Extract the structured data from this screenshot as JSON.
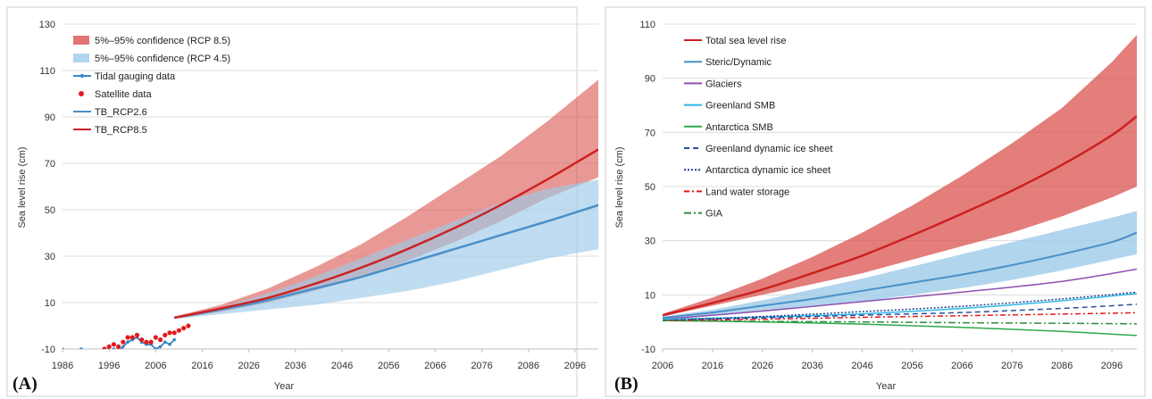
{
  "chart_data": [
    {
      "type": "line",
      "panel_label": "(A)",
      "xlabel": "Year",
      "ylabel": "Sea level rise (cm)",
      "xlim": [
        1986,
        2101
      ],
      "ylim": [
        -10,
        130
      ],
      "xticks": [
        "1986",
        "1996",
        "2006",
        "2016",
        "2026",
        "2036",
        "2046",
        "2056",
        "2066",
        "2076",
        "2086",
        "2096"
      ],
      "yticks": [
        "-10",
        "10",
        "30",
        "50",
        "70",
        "90",
        "110",
        "130"
      ],
      "grid": true,
      "legend_position": "top-left",
      "legend": [
        {
          "label": "5%–95% confidence (RCP 8.5)",
          "kind": "band",
          "color": "#d9534f"
        },
        {
          "label": "5%–95% confidence (RCP 4.5)",
          "kind": "band",
          "color": "#9ecae8"
        },
        {
          "label": "Tidal gauging data",
          "kind": "line-marker",
          "color": "#3a86c8"
        },
        {
          "label": "Satellite data",
          "kind": "marker",
          "color": "#e31a1c"
        },
        {
          "label": "TB_RCP2.6",
          "kind": "line",
          "color": "#4a90c8"
        },
        {
          "label": "TB_RCP8.5",
          "kind": "line",
          "color": "#cc2222"
        }
      ],
      "bands": [
        {
          "name": "5%–95% confidence (RCP 8.5)",
          "color": "#d9534f",
          "opacity": 0.6,
          "x": [
            2010,
            2020,
            2030,
            2040,
            2050,
            2060,
            2070,
            2080,
            2090,
            2101
          ],
          "upper": [
            4,
            9,
            16,
            25,
            35,
            47,
            60,
            73,
            88,
            106
          ],
          "lower": [
            3,
            6,
            10,
            15,
            21,
            28,
            36,
            45,
            55,
            64
          ]
        },
        {
          "name": "5%–95% confidence (RCP 4.5)",
          "color": "#9ecae8",
          "opacity": 0.65,
          "x": [
            2010,
            2020,
            2030,
            2040,
            2050,
            2060,
            2070,
            2080,
            2090,
            2101
          ],
          "upper": [
            4,
            8,
            14,
            21,
            29,
            37,
            45,
            53,
            59,
            63
          ],
          "lower": [
            3,
            5,
            7,
            9,
            12,
            15,
            19,
            24,
            29,
            33
          ]
        }
      ],
      "series": [
        {
          "name": "TB_RCP2.6",
          "color": "#4a90c8",
          "width": 2.5,
          "x": [
            2010,
            2020,
            2030,
            2040,
            2050,
            2060,
            2070,
            2080,
            2090,
            2101
          ],
          "values": [
            3.5,
            7,
            11,
            16,
            21,
            27,
            33,
            39,
            45,
            52
          ]
        },
        {
          "name": "TB_RCP8.5",
          "color": "#cc2222",
          "width": 2.5,
          "x": [
            2010,
            2020,
            2030,
            2040,
            2050,
            2060,
            2070,
            2080,
            2090,
            2101
          ],
          "values": [
            3.5,
            7.5,
            12,
            18,
            25,
            33,
            42,
            52,
            63,
            76
          ]
        }
      ],
      "observations": [
        {
          "name": "Tidal gauging data",
          "color": "#3a86c8",
          "style": "line-marker",
          "x": [
            1986,
            1987,
            1988,
            1989,
            1990,
            1991,
            1992,
            1993,
            1994,
            1995,
            1996,
            1997,
            1998,
            1999,
            2000,
            2001,
            2002,
            2003,
            2004,
            2005,
            2006,
            2007,
            2008,
            2009,
            2010
          ],
          "values": [
            -10,
            -11,
            -13,
            -12,
            -10,
            -11,
            -12,
            -13,
            -12,
            -12,
            -11,
            -10,
            -11,
            -9,
            -7,
            -6,
            -5,
            -7,
            -8,
            -8,
            -10,
            -9,
            -7,
            -8,
            -6
          ]
        },
        {
          "name": "Satellite data",
          "color": "#e31a1c",
          "style": "marker",
          "x": [
            1993,
            1994,
            1995,
            1996,
            1997,
            1998,
            1999,
            2000,
            2001,
            2002,
            2003,
            2004,
            2005,
            2006,
            2007,
            2008,
            2009,
            2010,
            2011,
            2012,
            2013
          ],
          "values": [
            -12,
            -11,
            -10,
            -9,
            -8,
            -9,
            -7,
            -5,
            -5,
            -4,
            -6,
            -7,
            -7,
            -5,
            -6,
            -4,
            -3,
            -3,
            -2,
            -1,
            0
          ]
        }
      ]
    },
    {
      "type": "line",
      "panel_label": "(B)",
      "xlabel": "Year",
      "ylabel": "Sea level rise (cm)",
      "xlim": [
        2006,
        2101
      ],
      "ylim": [
        -10,
        110
      ],
      "xticks": [
        "2006",
        "2016",
        "2026",
        "2036",
        "2046",
        "2056",
        "2066",
        "2076",
        "2086",
        "2096"
      ],
      "yticks": [
        "-10",
        "10",
        "30",
        "50",
        "70",
        "90",
        "110"
      ],
      "grid": true,
      "legend_position": "top-left",
      "legend": [
        {
          "label": "Total sea level rise",
          "kind": "line",
          "color": "#cc2222",
          "dash": ""
        },
        {
          "label": "Steric/Dynamic",
          "kind": "line",
          "color": "#4a90c8",
          "dash": ""
        },
        {
          "label": "Glaciers",
          "kind": "line",
          "color": "#8e4fb0",
          "dash": ""
        },
        {
          "label": "Greenland SMB",
          "kind": "line",
          "color": "#2fb8e6",
          "dash": ""
        },
        {
          "label": "Antarctica SMB",
          "kind": "line",
          "color": "#2ea84a",
          "dash": ""
        },
        {
          "label": "Greenland dynamic ice sheet",
          "kind": "line",
          "color": "#2a4fa0",
          "dash": "6,4"
        },
        {
          "label": "Antarctica dynamic ice sheet",
          "kind": "line",
          "color": "#1e3f8a",
          "dash": "2,2"
        },
        {
          "label": "Land water storage",
          "kind": "line",
          "color": "#e31a1c",
          "dash": "6,3,2,3"
        },
        {
          "label": "GIA",
          "kind": "line",
          "color": "#2e8b3a",
          "dash": "8,3,2,3"
        }
      ],
      "bands": [
        {
          "name": "Total sea level rise",
          "color": "#d9534f",
          "opacity": 0.75,
          "x": [
            2006,
            2016,
            2026,
            2036,
            2046,
            2056,
            2066,
            2076,
            2086,
            2096,
            2101
          ],
          "upper": [
            3,
            9,
            16,
            24,
            33,
            43,
            54,
            66,
            79,
            96,
            106
          ],
          "lower": [
            2,
            6,
            10,
            14,
            18,
            23,
            28,
            33,
            39,
            46,
            50
          ]
        },
        {
          "name": "Steric/Dynamic",
          "color": "#9ecae8",
          "opacity": 0.8,
          "x": [
            2006,
            2016,
            2026,
            2036,
            2046,
            2056,
            2066,
            2076,
            2086,
            2096,
            2101
          ],
          "upper": [
            2,
            4.5,
            8,
            12,
            16,
            20.5,
            25,
            29.5,
            34,
            38.5,
            41
          ],
          "lower": [
            1.5,
            2.5,
            4,
            5.5,
            7.5,
            10,
            12.5,
            15.5,
            19,
            23,
            25
          ]
        }
      ],
      "series": [
        {
          "name": "Total sea level rise",
          "color": "#cc2222",
          "width": 2.5,
          "dash": "",
          "x": [
            2006,
            2016,
            2026,
            2036,
            2046,
            2056,
            2066,
            2076,
            2086,
            2096,
            2101
          ],
          "values": [
            2.5,
            7,
            12,
            18,
            24.5,
            32,
            40,
            48.5,
            58,
            69,
            76
          ]
        },
        {
          "name": "Steric/Dynamic",
          "color": "#4a90c8",
          "width": 2,
          "dash": "",
          "x": [
            2006,
            2016,
            2026,
            2036,
            2046,
            2056,
            2066,
            2076,
            2086,
            2096,
            2101
          ],
          "values": [
            1.5,
            3.5,
            6,
            8.5,
            11.5,
            14.5,
            17.5,
            21,
            25,
            29.5,
            33
          ]
        },
        {
          "name": "Glaciers",
          "color": "#8e4fb0",
          "width": 1.5,
          "dash": "",
          "x": [
            2006,
            2026,
            2046,
            2066,
            2086,
            2101
          ],
          "values": [
            1,
            4,
            7.5,
            11,
            15,
            19.5
          ]
        },
        {
          "name": "Greenland SMB",
          "color": "#2fb8e6",
          "width": 1.5,
          "dash": "",
          "x": [
            2006,
            2026,
            2046,
            2066,
            2086,
            2101
          ],
          "values": [
            1,
            1.8,
            3,
            5,
            7.8,
            10.5
          ]
        },
        {
          "name": "Antarctica SMB",
          "color": "#2ea84a",
          "width": 1.5,
          "dash": "",
          "x": [
            2006,
            2026,
            2046,
            2066,
            2086,
            2101
          ],
          "values": [
            0.5,
            0,
            -0.8,
            -2,
            -3.5,
            -5
          ]
        },
        {
          "name": "Greenland dynamic ice sheet",
          "color": "#2a4fa0",
          "width": 1.5,
          "dash": "6,4",
          "x": [
            2006,
            2026,
            2046,
            2066,
            2086,
            2101
          ],
          "values": [
            0.5,
            1.5,
            2.5,
            3.5,
            5,
            6.5
          ]
        },
        {
          "name": "Antarctica dynamic ice sheet",
          "color": "#1e3f8a",
          "width": 1.5,
          "dash": "2,2",
          "x": [
            2006,
            2026,
            2046,
            2066,
            2086,
            2101
          ],
          "values": [
            0.5,
            2,
            3.8,
            5.8,
            8.5,
            11
          ]
        },
        {
          "name": "Land water storage",
          "color": "#e31a1c",
          "width": 1.5,
          "dash": "6,3,2,3",
          "x": [
            2006,
            2026,
            2046,
            2066,
            2086,
            2101
          ],
          "values": [
            0.5,
            1,
            1.7,
            2.3,
            2.9,
            3.4
          ]
        },
        {
          "name": "GIA",
          "color": "#2e8b3a",
          "width": 1.5,
          "dash": "8,3,2,3",
          "x": [
            2006,
            2026,
            2046,
            2066,
            2086,
            2101
          ],
          "values": [
            0.5,
            0.2,
            0,
            -0.3,
            -0.5,
            -0.7
          ]
        }
      ]
    }
  ]
}
